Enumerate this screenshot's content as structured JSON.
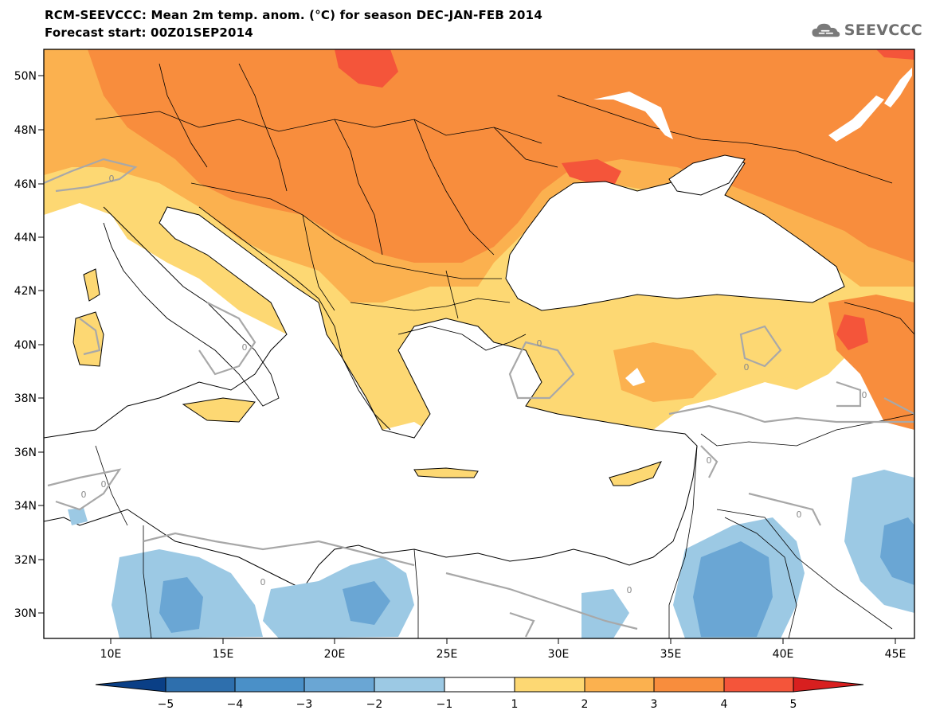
{
  "header": {
    "title": "RCM-SEEVCCC: Mean 2m temp. anom. (°C) for season DEC-JAN-FEB 2014",
    "subtitle": "Forecast start: 00Z01SEP2014",
    "logo_text": "SEEVCCC",
    "logo_icon": "cloud-icon"
  },
  "map": {
    "lat_labels": [
      "50N",
      "48N",
      "46N",
      "44N",
      "42N",
      "40N",
      "38N",
      "36N",
      "34N",
      "32N",
      "30N"
    ],
    "lon_labels": [
      "10E",
      "15E",
      "20E",
      "25E",
      "30E",
      "35E",
      "40E",
      "45E"
    ],
    "contour_labels": [
      "0",
      "0",
      "0",
      "0",
      "0",
      "0",
      "0",
      "0",
      "0",
      "0",
      "0"
    ]
  },
  "legend": {
    "ticks": [
      "−5",
      "−4",
      "−3",
      "−2",
      "−1",
      "1",
      "2",
      "3",
      "4",
      "5"
    ],
    "colors": [
      "#0a3f86",
      "#2e6fad",
      "#4a90c8",
      "#6aa6d4",
      "#9cc9e4",
      "#ffffff",
      "#fdd873",
      "#fbb14f",
      "#f88d3d",
      "#f4553a",
      "#d81f1f"
    ]
  },
  "colors": {
    "sea": "#ffffff",
    "land_neutral": "#ffffff",
    "anom_1_2": "#fdd873",
    "anom_2_3": "#fbb14f",
    "anom_3_4": "#f88d3d",
    "anom_4_5": "#f4553a",
    "anom_gt5": "#d81f1f",
    "anom_m1_m2": "#9cc9e4",
    "anom_m2_m3": "#6aa6d4",
    "border": "#000000",
    "zero_contour": "#a8a8a8"
  }
}
